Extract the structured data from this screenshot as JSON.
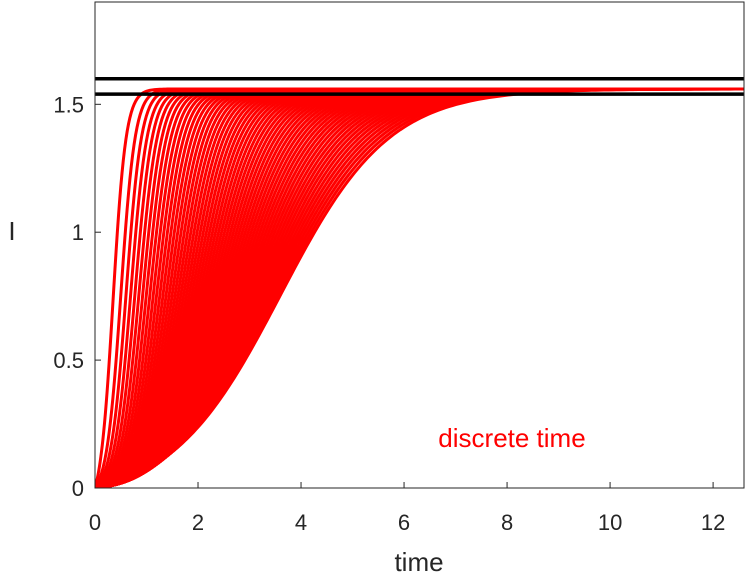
{
  "chart_data": {
    "type": "line",
    "title": "",
    "xlabel": "time",
    "ylabel": "I",
    "xlim": [
      0,
      12.6
    ],
    "ylim": [
      0,
      1.9
    ],
    "x_ticks": [
      "0",
      "2",
      "4",
      "6",
      "8",
      "10",
      "12"
    ],
    "y_ticks": [
      "0",
      "0.5",
      "1",
      "1.5"
    ],
    "grid": false,
    "annotation": "discrete time",
    "colors": {
      "curves": "#ff0000",
      "reference_lines": "#000000",
      "axes": "#262626",
      "annotation": "#ff0000"
    },
    "reference_lines": [
      {
        "y": 1.6
      },
      {
        "y": 1.54
      }
    ],
    "series_family": {
      "count": 60,
      "asymptote": 1.56,
      "description_of_shape": "sigmoid-like rise from 0 to ~1.56",
      "t_half_range": [
        0.35,
        3.6
      ],
      "steepness_range": [
        8.0,
        0.95
      ]
    }
  }
}
